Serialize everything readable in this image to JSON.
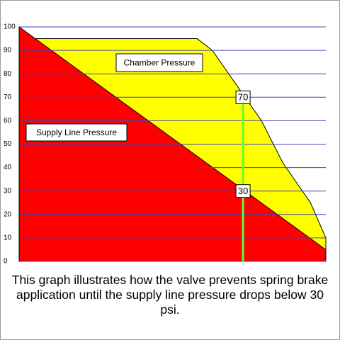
{
  "chart_data": {
    "type": "area",
    "ylim": [
      0,
      100
    ],
    "yticks": [
      0,
      10,
      20,
      30,
      40,
      50,
      60,
      70,
      80,
      90,
      100
    ],
    "grid": true,
    "xlim": [
      0,
      100
    ],
    "series": [
      {
        "name": "Supply Line Pressure",
        "color": "#ff0000",
        "x": [
          0,
          100
        ],
        "values": [
          100,
          5
        ]
      },
      {
        "name": "Chamber Pressure",
        "color": "#ffff00",
        "x": [
          5,
          58,
          63,
          79,
          86,
          95,
          100
        ],
        "values": [
          95,
          95,
          90,
          60,
          42,
          25,
          10
        ]
      }
    ],
    "marker": {
      "x": 73,
      "color": "#66ff33",
      "values": [
        70,
        30
      ]
    },
    "caption": "This graph illustrates how the valve prevents spring brake application until the supply line pressure drops below 30 psi."
  }
}
